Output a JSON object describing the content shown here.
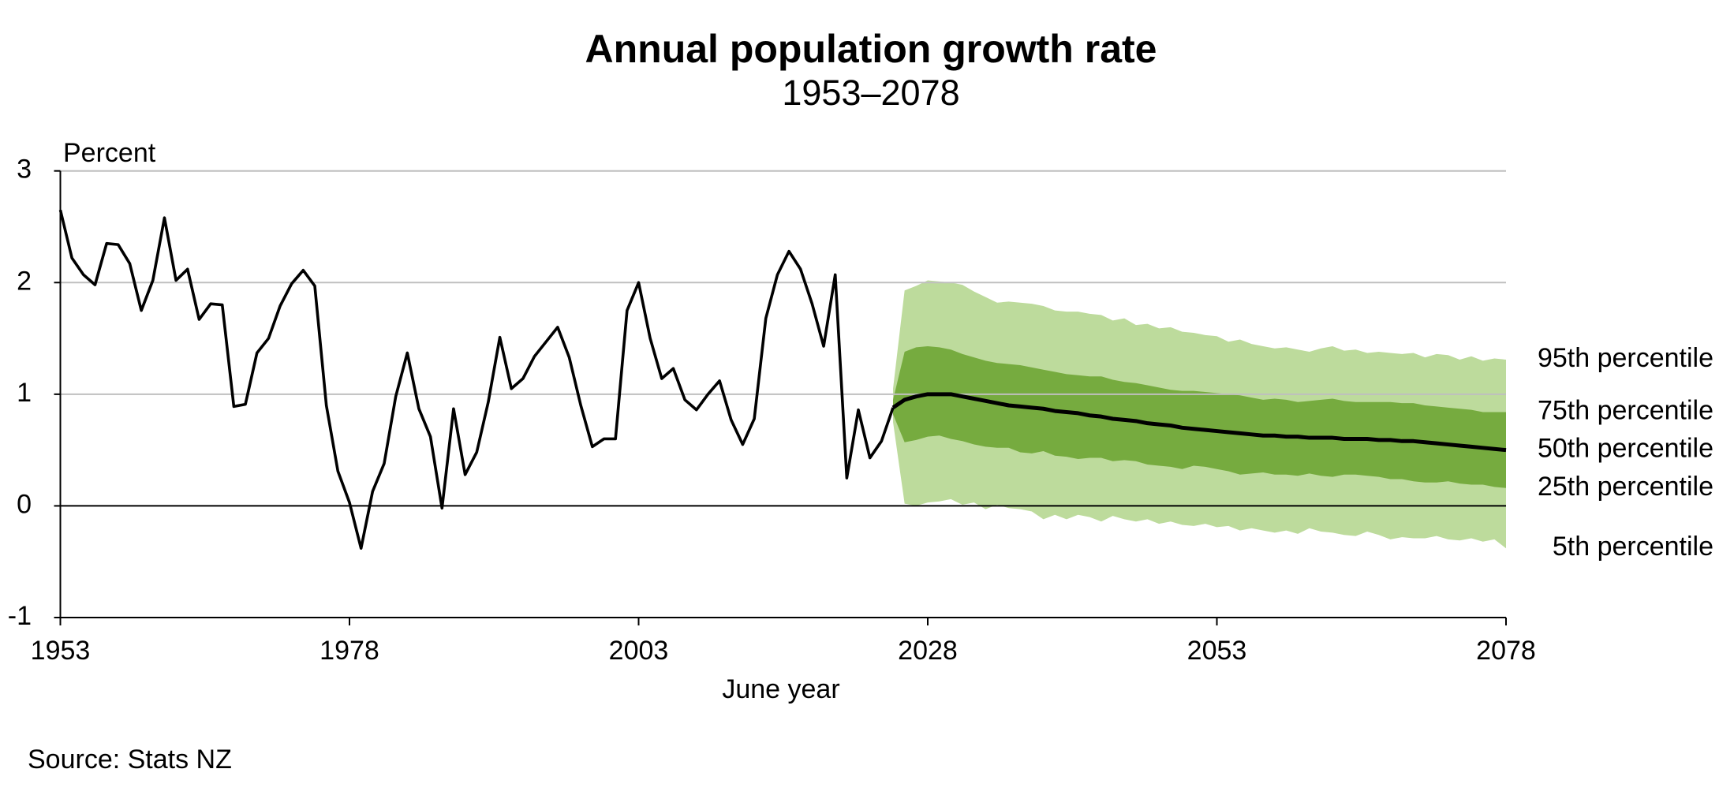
{
  "chart_data": {
    "type": "fan",
    "title": "Annual population growth rate",
    "subtitle": "1953–2078",
    "y_label": "Percent",
    "x_label": "June year",
    "source": "Source: Stats NZ",
    "xlim": [
      1953,
      2078
    ],
    "xticks": [
      1953,
      1978,
      2003,
      2028,
      2053,
      2078
    ],
    "ylim": [
      -1,
      3
    ],
    "yticks": [
      -1,
      0,
      1,
      2,
      3
    ],
    "grid": true,
    "color": "#000000",
    "x": [
      1953,
      1954,
      1955,
      1956,
      1957,
      1958,
      1959,
      1960,
      1961,
      1962,
      1963,
      1964,
      1965,
      1966,
      1967,
      1968,
      1969,
      1970,
      1971,
      1972,
      1973,
      1974,
      1975,
      1976,
      1977,
      1978,
      1979,
      1980,
      1981,
      1982,
      1983,
      1984,
      1985,
      1986,
      1987,
      1988,
      1989,
      1990,
      1991,
      1992,
      1993,
      1994,
      1995,
      1996,
      1997,
      1998,
      1999,
      2000,
      2001,
      2002,
      2003,
      2004,
      2005,
      2006,
      2007,
      2008,
      2009,
      2010,
      2011,
      2012,
      2013,
      2014,
      2015,
      2016,
      2017,
      2018,
      2019,
      2020,
      2021,
      2022,
      2023,
      2024,
      2025
    ],
    "values": [
      2.65,
      2.22,
      2.07,
      1.98,
      2.35,
      2.34,
      2.17,
      1.75,
      2.02,
      2.58,
      2.02,
      2.12,
      1.67,
      1.81,
      1.8,
      0.89,
      0.91,
      1.37,
      1.5,
      1.79,
      1.99,
      2.11,
      1.97,
      0.9,
      0.31,
      0.03,
      -0.38,
      0.13,
      0.38,
      0.98,
      1.37,
      0.87,
      0.62,
      -0.02,
      0.87,
      0.28,
      0.48,
      0.93,
      1.51,
      1.05,
      1.14,
      1.34,
      1.47,
      1.6,
      1.33,
      0.9,
      0.53,
      0.6,
      0.6,
      1.75,
      2.0,
      1.5,
      1.14,
      1.23,
      0.95,
      0.86,
      1.0,
      1.12,
      0.77,
      0.55,
      0.78,
      1.68,
      2.07,
      2.28,
      2.12,
      1.81,
      1.43,
      2.07,
      0.25,
      0.86,
      0.43,
      0.58,
      0.88
    ],
    "projection": {
      "x": [
        2025,
        2026,
        2027,
        2028,
        2029,
        2030,
        2031,
        2032,
        2033,
        2034,
        2035,
        2036,
        2037,
        2038,
        2039,
        2040,
        2041,
        2042,
        2043,
        2044,
        2045,
        2046,
        2047,
        2048,
        2049,
        2050,
        2051,
        2052,
        2053,
        2054,
        2055,
        2056,
        2057,
        2058,
        2059,
        2060,
        2061,
        2062,
        2063,
        2064,
        2065,
        2066,
        2067,
        2068,
        2069,
        2070,
        2071,
        2072,
        2073,
        2074,
        2075,
        2076,
        2077,
        2078
      ],
      "series": [
        {
          "name": "95th percentile",
          "color": "#bddb9c",
          "values": [
            1.05,
            1.93,
            1.97,
            2.02,
            2.01,
            2.0,
            1.98,
            1.92,
            1.87,
            1.82,
            1.83,
            1.82,
            1.81,
            1.79,
            1.75,
            1.74,
            1.74,
            1.72,
            1.71,
            1.66,
            1.68,
            1.62,
            1.63,
            1.59,
            1.6,
            1.56,
            1.55,
            1.53,
            1.52,
            1.47,
            1.49,
            1.45,
            1.43,
            1.41,
            1.42,
            1.4,
            1.38,
            1.41,
            1.43,
            1.39,
            1.4,
            1.37,
            1.38,
            1.37,
            1.36,
            1.37,
            1.33,
            1.36,
            1.35,
            1.31,
            1.34,
            1.3,
            1.32,
            1.31
          ]
        },
        {
          "name": "75th percentile",
          "color": "#76ab3f",
          "values": [
            0.95,
            1.38,
            1.42,
            1.43,
            1.42,
            1.4,
            1.36,
            1.33,
            1.3,
            1.28,
            1.27,
            1.26,
            1.24,
            1.22,
            1.2,
            1.18,
            1.17,
            1.16,
            1.16,
            1.13,
            1.11,
            1.1,
            1.08,
            1.06,
            1.04,
            1.03,
            1.03,
            1.02,
            1.01,
            1.0,
            0.99,
            0.97,
            0.95,
            0.96,
            0.95,
            0.93,
            0.94,
            0.95,
            0.96,
            0.94,
            0.93,
            0.93,
            0.93,
            0.93,
            0.92,
            0.92,
            0.9,
            0.89,
            0.88,
            0.87,
            0.86,
            0.84,
            0.84,
            0.84
          ]
        },
        {
          "name": "50th percentile",
          "color": "#000000",
          "values": [
            0.88,
            0.95,
            0.98,
            1.0,
            1.0,
            1.0,
            0.98,
            0.96,
            0.94,
            0.92,
            0.9,
            0.89,
            0.88,
            0.87,
            0.85,
            0.84,
            0.83,
            0.81,
            0.8,
            0.78,
            0.77,
            0.76,
            0.74,
            0.73,
            0.72,
            0.7,
            0.69,
            0.68,
            0.67,
            0.66,
            0.65,
            0.64,
            0.63,
            0.63,
            0.62,
            0.62,
            0.61,
            0.61,
            0.61,
            0.6,
            0.6,
            0.6,
            0.59,
            0.59,
            0.58,
            0.58,
            0.57,
            0.56,
            0.55,
            0.54,
            0.53,
            0.52,
            0.51,
            0.5
          ]
        },
        {
          "name": "25th percentile",
          "color": "#76ab3f",
          "values": [
            0.82,
            0.57,
            0.59,
            0.62,
            0.63,
            0.6,
            0.58,
            0.55,
            0.53,
            0.52,
            0.52,
            0.48,
            0.47,
            0.49,
            0.45,
            0.44,
            0.42,
            0.43,
            0.43,
            0.4,
            0.41,
            0.4,
            0.37,
            0.36,
            0.35,
            0.33,
            0.36,
            0.35,
            0.33,
            0.31,
            0.28,
            0.29,
            0.3,
            0.28,
            0.28,
            0.27,
            0.29,
            0.27,
            0.26,
            0.28,
            0.28,
            0.27,
            0.26,
            0.24,
            0.24,
            0.22,
            0.21,
            0.21,
            0.22,
            0.2,
            0.19,
            0.19,
            0.17,
            0.16
          ]
        },
        {
          "name": "5th percentile",
          "color": "#bddb9c",
          "values": [
            0.75,
            0.02,
            0.0,
            0.03,
            0.04,
            0.06,
            0.01,
            0.03,
            -0.03,
            0.01,
            -0.02,
            -0.03,
            -0.05,
            -0.12,
            -0.08,
            -0.12,
            -0.08,
            -0.1,
            -0.14,
            -0.09,
            -0.12,
            -0.14,
            -0.12,
            -0.16,
            -0.14,
            -0.17,
            -0.18,
            -0.16,
            -0.19,
            -0.18,
            -0.22,
            -0.2,
            -0.22,
            -0.24,
            -0.22,
            -0.25,
            -0.2,
            -0.23,
            -0.24,
            -0.26,
            -0.27,
            -0.23,
            -0.26,
            -0.3,
            -0.28,
            -0.29,
            -0.29,
            -0.27,
            -0.3,
            -0.31,
            -0.29,
            -0.32,
            -0.3,
            -0.38
          ]
        }
      ]
    }
  }
}
